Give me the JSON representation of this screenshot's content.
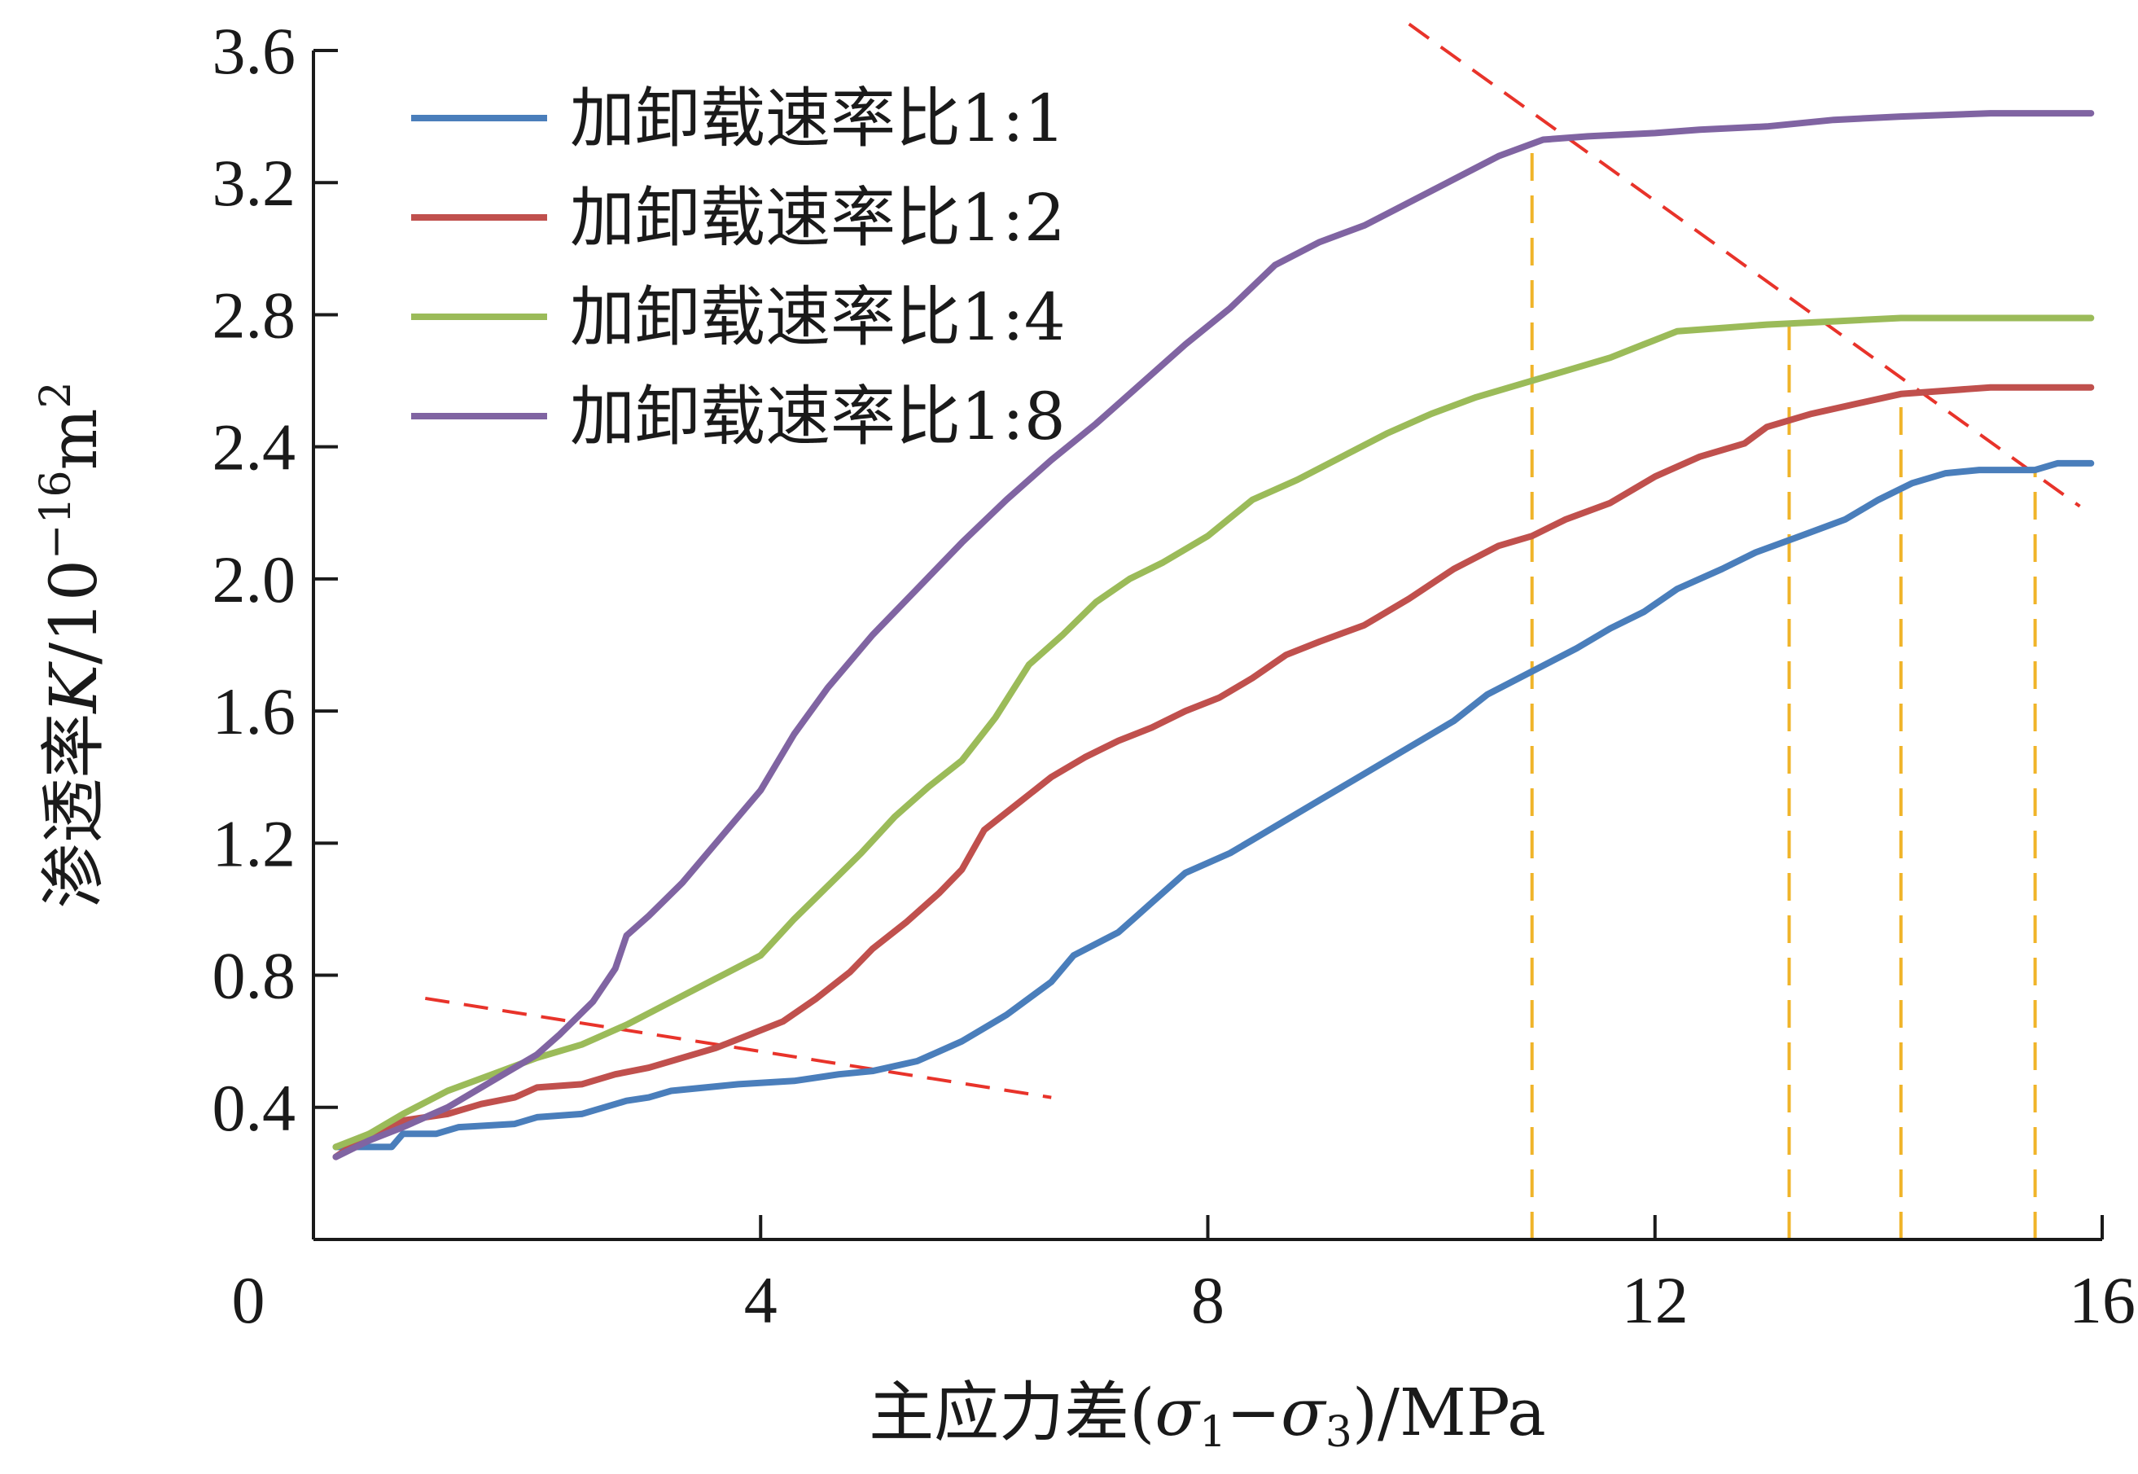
{
  "chart_data": {
    "type": "line",
    "title": "",
    "xlabel": "主应力差(σ1−σ3)/MPa",
    "xlabel_parts": {
      "prefix": "主应力差(",
      "sym1": "σ",
      "sub1": "1",
      "minus": "−",
      "sym2": "σ",
      "sub2": "3",
      "suffix": ")/MPa"
    },
    "ylabel": "渗透率K/10−16m2",
    "ylabel_parts": {
      "prefix": "渗透率",
      "var": "K",
      "unit": "/10",
      "exp": "−16",
      "unit2": "m",
      "exp2": "2"
    },
    "xlim": [
      0,
      16
    ],
    "ylim": [
      0,
      3.6
    ],
    "x_ticks": [
      0,
      4,
      8,
      12,
      16
    ],
    "x_tick_labels": [
      "0",
      "4",
      "8",
      "12",
      "16"
    ],
    "y_ticks": [
      0.4,
      0.8,
      1.2,
      1.6,
      2.0,
      2.4,
      2.8,
      3.2,
      3.6
    ],
    "y_tick_labels": [
      "0.4",
      "0.8",
      "1.2",
      "1.6",
      "2.0",
      "2.4",
      "2.8",
      "3.2",
      "3.6"
    ],
    "grid": false,
    "legend_position": "top-left",
    "series": [
      {
        "name": "加卸载速率比1:1",
        "color": "#4a7ebb",
        "points": [
          [
            0.2,
            0.28
          ],
          [
            0.7,
            0.28
          ],
          [
            0.8,
            0.32
          ],
          [
            1.1,
            0.32
          ],
          [
            1.3,
            0.34
          ],
          [
            1.8,
            0.35
          ],
          [
            2.0,
            0.37
          ],
          [
            2.4,
            0.38
          ],
          [
            2.8,
            0.42
          ],
          [
            3.0,
            0.43
          ],
          [
            3.2,
            0.45
          ],
          [
            3.8,
            0.47
          ],
          [
            4.3,
            0.48
          ],
          [
            4.7,
            0.5
          ],
          [
            5.0,
            0.51
          ],
          [
            5.4,
            0.54
          ],
          [
            5.8,
            0.6
          ],
          [
            6.2,
            0.68
          ],
          [
            6.6,
            0.78
          ],
          [
            6.8,
            0.86
          ],
          [
            7.2,
            0.93
          ],
          [
            7.5,
            1.02
          ],
          [
            7.8,
            1.11
          ],
          [
            8.2,
            1.17
          ],
          [
            8.6,
            1.25
          ],
          [
            9.0,
            1.33
          ],
          [
            9.4,
            1.41
          ],
          [
            9.8,
            1.49
          ],
          [
            10.2,
            1.57
          ],
          [
            10.5,
            1.65
          ],
          [
            10.9,
            1.72
          ],
          [
            11.3,
            1.79
          ],
          [
            11.6,
            1.85
          ],
          [
            11.9,
            1.9
          ],
          [
            12.2,
            1.97
          ],
          [
            12.6,
            2.03
          ],
          [
            12.9,
            2.08
          ],
          [
            13.3,
            2.13
          ],
          [
            13.7,
            2.18
          ],
          [
            14.0,
            2.24
          ],
          [
            14.3,
            2.29
          ],
          [
            14.6,
            2.32
          ],
          [
            14.9,
            2.33
          ],
          [
            15.4,
            2.33
          ],
          [
            15.6,
            2.35
          ],
          [
            15.9,
            2.35
          ]
        ]
      },
      {
        "name": "加卸载速率比1:2",
        "color": "#c0504d",
        "points": [
          [
            0.2,
            0.25
          ],
          [
            0.5,
            0.32
          ],
          [
            0.8,
            0.36
          ],
          [
            1.2,
            0.38
          ],
          [
            1.5,
            0.41
          ],
          [
            1.8,
            0.43
          ],
          [
            2.0,
            0.46
          ],
          [
            2.4,
            0.47
          ],
          [
            2.7,
            0.5
          ],
          [
            3.0,
            0.52
          ],
          [
            3.3,
            0.55
          ],
          [
            3.6,
            0.58
          ],
          [
            3.9,
            0.62
          ],
          [
            4.2,
            0.66
          ],
          [
            4.5,
            0.73
          ],
          [
            4.8,
            0.81
          ],
          [
            5.0,
            0.88
          ],
          [
            5.3,
            0.96
          ],
          [
            5.6,
            1.05
          ],
          [
            5.8,
            1.12
          ],
          [
            6.0,
            1.24
          ],
          [
            6.3,
            1.32
          ],
          [
            6.6,
            1.4
          ],
          [
            6.9,
            1.46
          ],
          [
            7.2,
            1.51
          ],
          [
            7.5,
            1.55
          ],
          [
            7.8,
            1.6
          ],
          [
            8.1,
            1.64
          ],
          [
            8.4,
            1.7
          ],
          [
            8.7,
            1.77
          ],
          [
            9.0,
            1.81
          ],
          [
            9.4,
            1.86
          ],
          [
            9.8,
            1.94
          ],
          [
            10.2,
            2.03
          ],
          [
            10.6,
            2.1
          ],
          [
            10.9,
            2.13
          ],
          [
            11.2,
            2.18
          ],
          [
            11.6,
            2.23
          ],
          [
            12.0,
            2.31
          ],
          [
            12.4,
            2.37
          ],
          [
            12.8,
            2.41
          ],
          [
            13.0,
            2.46
          ],
          [
            13.4,
            2.5
          ],
          [
            13.8,
            2.53
          ],
          [
            14.2,
            2.56
          ],
          [
            14.6,
            2.57
          ],
          [
            15.0,
            2.58
          ],
          [
            15.4,
            2.58
          ],
          [
            15.9,
            2.58
          ]
        ]
      },
      {
        "name": "加卸载速率比1:4",
        "color": "#9bbb59",
        "points": [
          [
            0.2,
            0.28
          ],
          [
            0.5,
            0.32
          ],
          [
            0.8,
            0.38
          ],
          [
            1.2,
            0.45
          ],
          [
            1.6,
            0.5
          ],
          [
            2.0,
            0.55
          ],
          [
            2.4,
            0.59
          ],
          [
            2.8,
            0.65
          ],
          [
            3.2,
            0.72
          ],
          [
            3.6,
            0.79
          ],
          [
            4.0,
            0.86
          ],
          [
            4.3,
            0.97
          ],
          [
            4.6,
            1.07
          ],
          [
            4.9,
            1.17
          ],
          [
            5.2,
            1.28
          ],
          [
            5.5,
            1.37
          ],
          [
            5.8,
            1.45
          ],
          [
            6.1,
            1.58
          ],
          [
            6.4,
            1.74
          ],
          [
            6.7,
            1.83
          ],
          [
            7.0,
            1.93
          ],
          [
            7.3,
            2.0
          ],
          [
            7.6,
            2.05
          ],
          [
            8.0,
            2.13
          ],
          [
            8.4,
            2.24
          ],
          [
            8.8,
            2.3
          ],
          [
            9.2,
            2.37
          ],
          [
            9.6,
            2.44
          ],
          [
            10.0,
            2.5
          ],
          [
            10.4,
            2.55
          ],
          [
            10.8,
            2.59
          ],
          [
            11.2,
            2.63
          ],
          [
            11.6,
            2.67
          ],
          [
            11.9,
            2.71
          ],
          [
            12.2,
            2.75
          ],
          [
            12.6,
            2.76
          ],
          [
            13.0,
            2.77
          ],
          [
            13.6,
            2.78
          ],
          [
            14.2,
            2.79
          ],
          [
            15.0,
            2.79
          ],
          [
            15.9,
            2.79
          ]
        ]
      },
      {
        "name": "加卸载速率比1:8",
        "color": "#8064a2",
        "points": [
          [
            0.2,
            0.25
          ],
          [
            0.5,
            0.3
          ],
          [
            0.8,
            0.34
          ],
          [
            1.2,
            0.4
          ],
          [
            1.6,
            0.48
          ],
          [
            2.0,
            0.56
          ],
          [
            2.2,
            0.62
          ],
          [
            2.5,
            0.72
          ],
          [
            2.7,
            0.82
          ],
          [
            2.8,
            0.92
          ],
          [
            3.0,
            0.98
          ],
          [
            3.3,
            1.08
          ],
          [
            3.6,
            1.2
          ],
          [
            4.0,
            1.36
          ],
          [
            4.3,
            1.53
          ],
          [
            4.6,
            1.67
          ],
          [
            5.0,
            1.83
          ],
          [
            5.4,
            1.97
          ],
          [
            5.8,
            2.11
          ],
          [
            6.2,
            2.24
          ],
          [
            6.6,
            2.36
          ],
          [
            7.0,
            2.47
          ],
          [
            7.4,
            2.59
          ],
          [
            7.8,
            2.71
          ],
          [
            8.2,
            2.82
          ],
          [
            8.6,
            2.95
          ],
          [
            9.0,
            3.02
          ],
          [
            9.4,
            3.07
          ],
          [
            9.8,
            3.14
          ],
          [
            10.2,
            3.21
          ],
          [
            10.6,
            3.28
          ],
          [
            11.0,
            3.33
          ],
          [
            11.4,
            3.34
          ],
          [
            12.0,
            3.35
          ],
          [
            12.4,
            3.36
          ],
          [
            13.0,
            3.37
          ],
          [
            13.6,
            3.39
          ],
          [
            14.2,
            3.4
          ],
          [
            15.0,
            3.41
          ],
          [
            15.9,
            3.41
          ]
        ]
      }
    ],
    "annotations": {
      "red_dashed_lines": [
        {
          "from": [
            1.0,
            0.73
          ],
          "to": [
            6.6,
            0.43
          ]
        },
        {
          "from": [
            9.8,
            3.68
          ],
          "to": [
            15.8,
            2.22
          ]
        }
      ],
      "yellow_dashed_verticals": [
        {
          "x": 10.9,
          "y_top": 3.33
        },
        {
          "x": 13.2,
          "y_top": 2.77
        },
        {
          "x": 14.2,
          "y_top": 2.56
        },
        {
          "x": 15.4,
          "y_top": 2.33
        }
      ],
      "red_color": "#e8332a",
      "yellow_color": "#f0b429"
    }
  }
}
